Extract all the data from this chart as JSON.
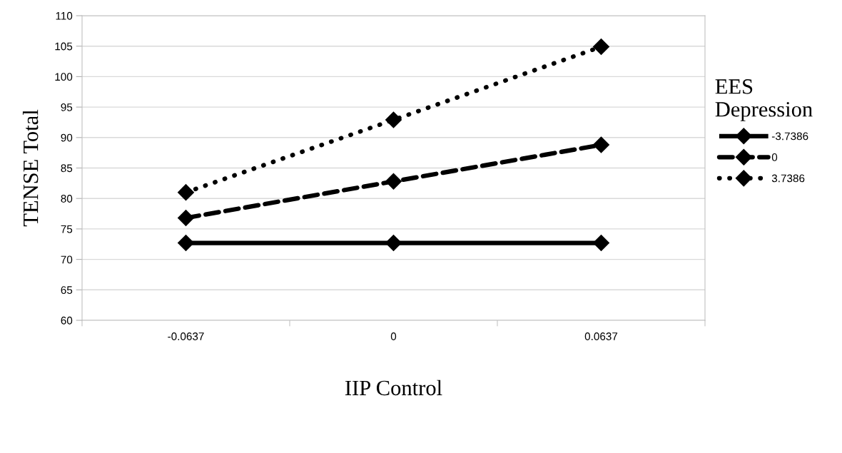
{
  "chart_data": {
    "type": "line",
    "xlabel": "IIP Control",
    "ylabel": "TENSE Total",
    "legend_title": "EES\nDepression",
    "categories": [
      "-0.0637",
      "0",
      "0.0637"
    ],
    "series": [
      {
        "name": "-3.7386",
        "color": "#000000",
        "line_style": "solid",
        "values": [
          72.7,
          72.7,
          72.7
        ]
      },
      {
        "name": "0",
        "color": "#000000",
        "line_style": "dashed",
        "values": [
          76.8,
          82.8,
          88.8
        ]
      },
      {
        "name": "3.7386",
        "color": "#000000",
        "line_style": "dotted",
        "values": [
          81.0,
          92.9,
          104.9
        ]
      }
    ],
    "marker": "diamond",
    "ylim": [
      60,
      110
    ],
    "yticks": [
      60,
      65,
      70,
      75,
      80,
      85,
      90,
      95,
      100,
      105,
      110
    ],
    "grid": "y",
    "legend": "right"
  }
}
